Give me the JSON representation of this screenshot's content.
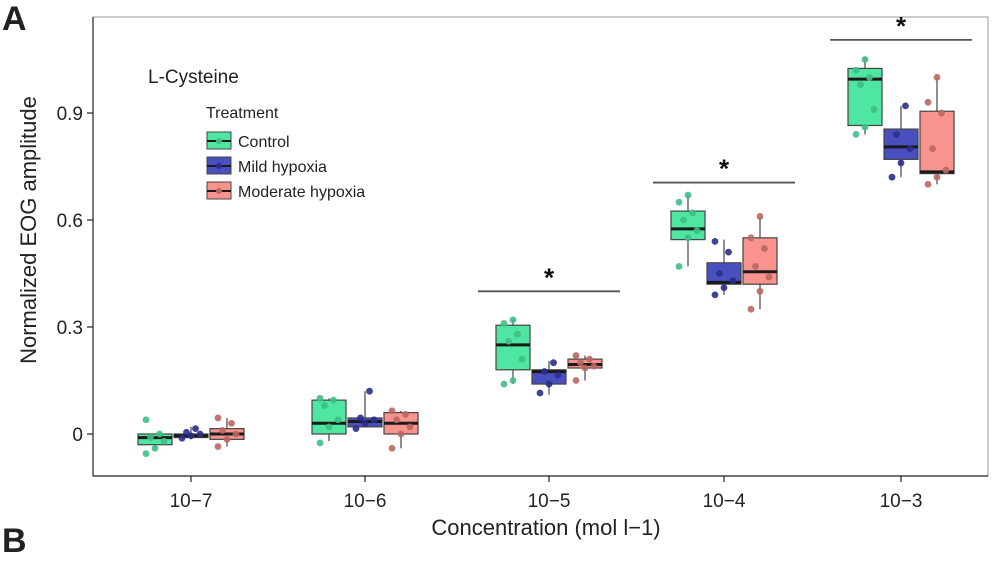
{
  "panel_label": "A",
  "next_panel_label": "B",
  "chart_data": {
    "type": "box",
    "subtitle": "L-Cysteine",
    "xlabel": "Concentration (mol l−1)",
    "ylabel": "Normalized EOG amplitude",
    "ylim": [
      -0.12,
      1.17
    ],
    "yticks": [
      0,
      0.3,
      0.6,
      0.9
    ],
    "ytick_labels": [
      "0",
      "0.3",
      "0.6",
      "0.9"
    ],
    "categories": [
      "10−7",
      "10−6",
      "10−5",
      "10−4",
      "10−3"
    ],
    "legend": {
      "title": "Treatment",
      "position": "top-left"
    },
    "series": [
      {
        "name": "Control",
        "fill": "#4EE6A0",
        "point_color": "#3FBE84",
        "boxes": [
          {
            "min": -0.04,
            "q1": -0.03,
            "median": -0.01,
            "q3": 0.0,
            "max": 0.0
          },
          {
            "min": -0.02,
            "q1": 0.0,
            "median": 0.03,
            "q3": 0.095,
            "max": 0.1
          },
          {
            "min": 0.14,
            "q1": 0.18,
            "median": 0.25,
            "q3": 0.305,
            "max": 0.32
          },
          {
            "min": 0.47,
            "q1": 0.545,
            "median": 0.575,
            "q3": 0.625,
            "max": 0.67
          },
          {
            "min": 0.84,
            "q1": 0.865,
            "median": 0.995,
            "q3": 1.025,
            "max": 1.055
          }
        ],
        "points": [
          [
            -0.055,
            -0.04,
            -0.02,
            -0.01,
            0.0,
            0.04
          ],
          [
            -0.025,
            0.02,
            0.04,
            0.08,
            0.095,
            0.1
          ],
          [
            0.14,
            0.15,
            0.21,
            0.26,
            0.28,
            0.31,
            0.32
          ],
          [
            0.47,
            0.55,
            0.57,
            0.6,
            0.62,
            0.65,
            0.67
          ],
          [
            0.84,
            0.86,
            0.91,
            0.98,
            1.0,
            1.02,
            1.05
          ]
        ]
      },
      {
        "name": "Mild hypoxia",
        "fill": "#4A4FC0",
        "point_color": "#2B2F8A",
        "boxes": [
          {
            "min": -0.015,
            "q1": -0.01,
            "median": -0.005,
            "q3": 0.0,
            "max": 0.02
          },
          {
            "min": 0.02,
            "q1": 0.02,
            "median": 0.035,
            "q3": 0.045,
            "max": 0.12
          },
          {
            "min": 0.11,
            "q1": 0.14,
            "median": 0.175,
            "q3": 0.18,
            "max": 0.205
          },
          {
            "min": 0.39,
            "q1": 0.42,
            "median": 0.425,
            "q3": 0.48,
            "max": 0.545
          },
          {
            "min": 0.72,
            "q1": 0.77,
            "median": 0.805,
            "q3": 0.855,
            "max": 0.92
          }
        ],
        "points": [
          [
            -0.012,
            -0.005,
            0.0,
            0.005,
            0.015
          ],
          [
            0.015,
            0.03,
            0.04,
            0.045,
            0.12
          ],
          [
            0.115,
            0.14,
            0.165,
            0.175,
            0.2
          ],
          [
            0.39,
            0.41,
            0.43,
            0.45,
            0.51,
            0.54
          ],
          [
            0.72,
            0.76,
            0.8,
            0.84,
            0.92
          ]
        ]
      },
      {
        "name": "Moderate hypoxia",
        "fill": "#F8938E",
        "point_color": "#B86860",
        "boxes": [
          {
            "min": -0.035,
            "q1": -0.015,
            "median": 0.0,
            "q3": 0.015,
            "max": 0.045
          },
          {
            "min": -0.04,
            "q1": 0.0,
            "median": 0.03,
            "q3": 0.06,
            "max": 0.065
          },
          {
            "min": 0.15,
            "q1": 0.185,
            "median": 0.195,
            "q3": 0.21,
            "max": 0.22
          },
          {
            "min": 0.35,
            "q1": 0.42,
            "median": 0.455,
            "q3": 0.55,
            "max": 0.61
          },
          {
            "min": 0.7,
            "q1": 0.73,
            "median": 0.735,
            "q3": 0.905,
            "max": 1.0
          }
        ],
        "points": [
          [
            -0.035,
            -0.015,
            0.0,
            0.01,
            0.03,
            0.045
          ],
          [
            -0.04,
            0.0,
            0.02,
            0.04,
            0.055,
            0.065
          ],
          [
            0.15,
            0.185,
            0.19,
            0.2,
            0.21,
            0.22
          ],
          [
            0.35,
            0.4,
            0.44,
            0.47,
            0.52,
            0.55,
            0.61
          ],
          [
            0.7,
            0.72,
            0.74,
            0.8,
            0.9,
            0.93,
            1.0
          ]
        ]
      }
    ],
    "annotations": [
      {
        "category_index": 2,
        "label": "*",
        "y": 0.4
      },
      {
        "category_index": 3,
        "label": "*",
        "y": 0.705
      },
      {
        "category_index": 4,
        "label": "*",
        "y": 1.105
      }
    ]
  }
}
